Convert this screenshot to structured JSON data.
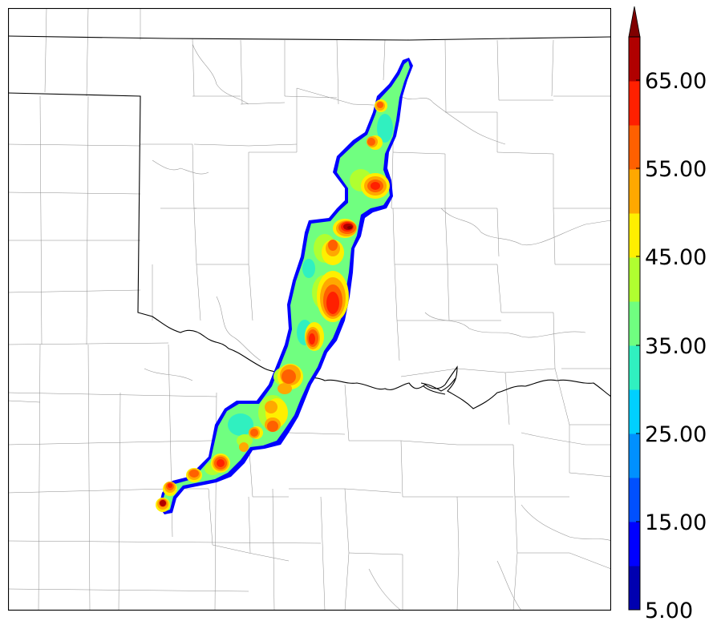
{
  "colorbar": {
    "ticks": [
      "5.00",
      "15.00",
      "25.00",
      "35.00",
      "45.00",
      "55.00",
      "65.00"
    ],
    "levels": [
      5,
      10,
      15,
      20,
      25,
      30,
      35,
      40,
      45,
      50,
      55,
      60,
      65,
      70
    ],
    "colors": [
      "#0000b0",
      "#0000ff",
      "#0050ff",
      "#0090ff",
      "#00d0ff",
      "#30f0c0",
      "#70ff80",
      "#b0ff30",
      "#ffef00",
      "#ffa800",
      "#ff6000",
      "#ff2000",
      "#b00000",
      "#800000"
    ],
    "extend": "max"
  }
}
